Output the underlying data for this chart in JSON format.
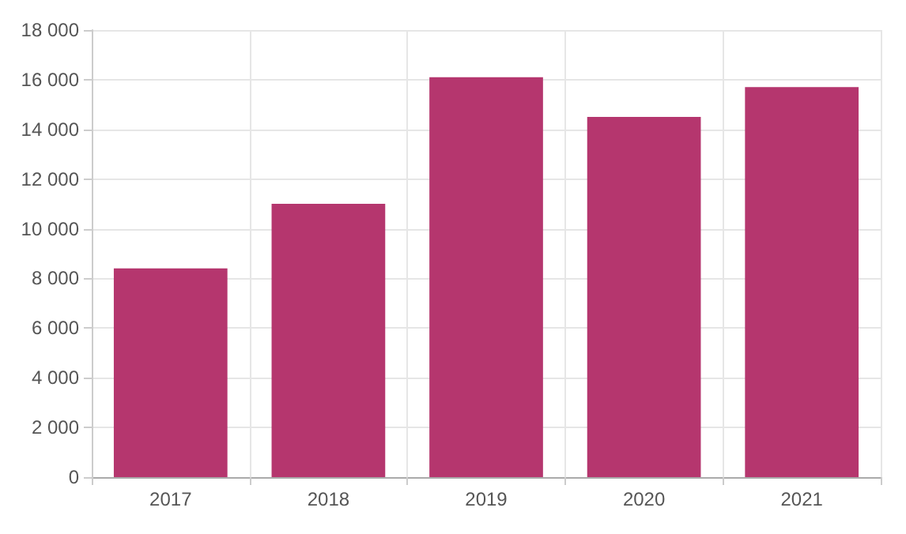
{
  "chart_data": {
    "type": "bar",
    "categories": [
      "2017",
      "2018",
      "2019",
      "2020",
      "2021"
    ],
    "values": [
      8400,
      11000,
      16100,
      14500,
      15700
    ],
    "color": "#b5366e",
    "ylim": [
      0,
      18000
    ],
    "yticks": [
      0,
      {
        "value": 2000,
        "label": "2 000"
      },
      {
        "value": 4000,
        "label": "4 000"
      },
      {
        "value": 6000,
        "label": "6 000"
      },
      {
        "value": 8000,
        "label": "8 000"
      },
      {
        "value": 10000,
        "label": "10 000"
      },
      {
        "value": 12000,
        "label": "12 000"
      },
      {
        "value": 14000,
        "label": "14 000"
      },
      {
        "value": 16000,
        "label": "16 000"
      },
      {
        "value": 18000,
        "label": "18 000"
      }
    ],
    "grid": true
  }
}
